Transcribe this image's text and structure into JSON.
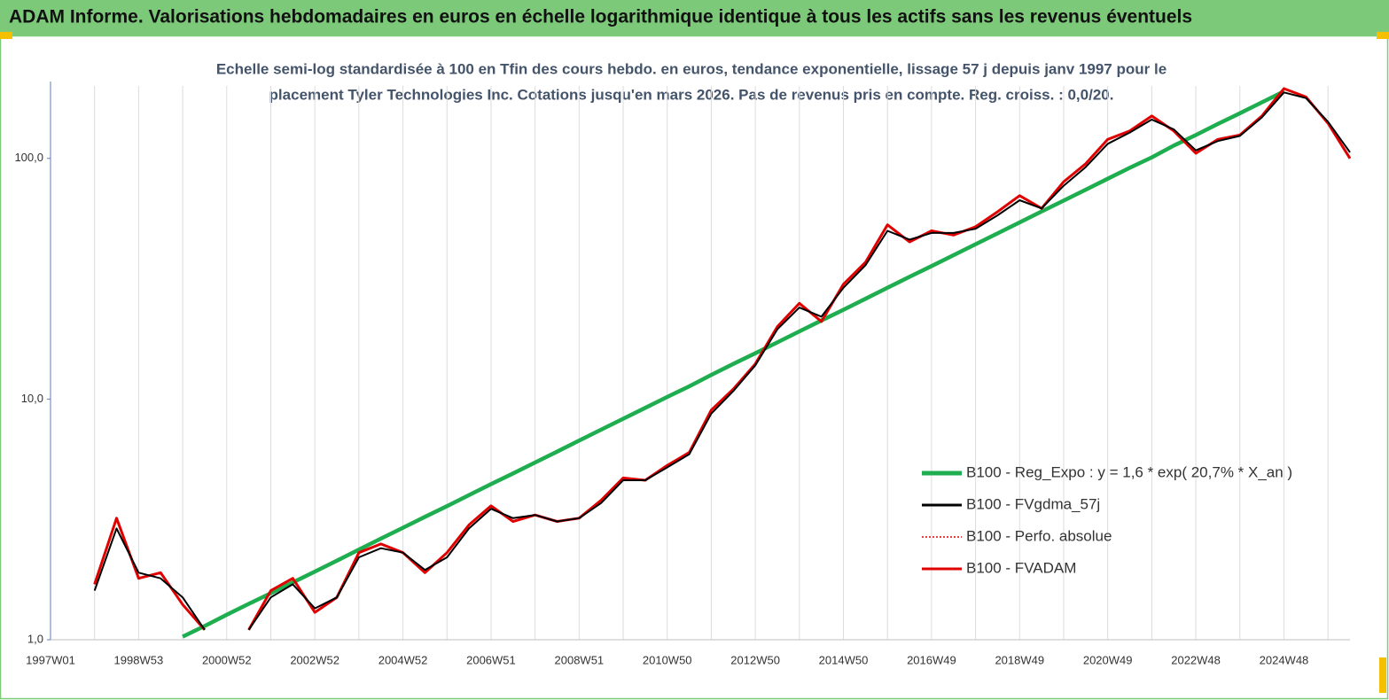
{
  "chart_data": {
    "type": "line",
    "title": "ADAM Informe. Valorisations hebdomadaires en euros en échelle logarithmique identique à tous les actifs sans les revenus éventuels",
    "subtitle": [
      "Echelle semi-log standardisée à 100 en Tfin des cours hebdo. en euros, tendance exponentielle, lissage 57 j depuis janv 1997 pour le",
      "placement Tyler Technologies Inc. Cotations jusqu'en mars 2026. Pas de revenus pris en compte. Reg. croiss. : 0,0/20."
    ],
    "categories": [
      "1997W01",
      null,
      null,
      null,
      "1998W53",
      null,
      null,
      null,
      "2000W52",
      null,
      null,
      null,
      "2002W52",
      null,
      null,
      null,
      "2004W52",
      null,
      null,
      null,
      "2006W51",
      null,
      null,
      null,
      "2008W51",
      null,
      null,
      null,
      "2010W50",
      null,
      null,
      null,
      "2012W50",
      null,
      null,
      null,
      "2014W50",
      null,
      null,
      null,
      "2016W49",
      null,
      null,
      null,
      "2018W49",
      null,
      null,
      null,
      "2020W49",
      null,
      null,
      null,
      "2022W48",
      null,
      null,
      null,
      "2024W48",
      null,
      null,
      null
    ],
    "log_scale": true,
    "ylim": [
      1,
      200
    ],
    "yticks": [
      {
        "value": 1,
        "label": "1,0"
      },
      {
        "value": 10,
        "label": "10,0"
      },
      {
        "value": 100,
        "label": "100,0"
      }
    ],
    "x_grid": true,
    "legend": "lower right",
    "series": [
      {
        "name": "B100 - Reg_Expo : y = 1,6 * exp( 20,7% *  X_an )",
        "color": "#1fae4f",
        "style": "solid",
        "values": [
          null,
          null,
          null,
          null,
          null,
          null,
          1.03,
          1.14,
          1.27,
          1.41,
          1.56,
          1.73,
          1.92,
          2.13,
          2.37,
          2.63,
          2.92,
          3.24,
          3.59,
          3.99,
          4.43,
          4.91,
          5.45,
          6.05,
          6.72,
          7.46,
          8.28,
          9.19,
          10.2,
          11.3,
          12.6,
          14.0,
          15.5,
          17.2,
          19.1,
          21.2,
          23.5,
          26.1,
          29.0,
          32.2,
          35.7,
          39.6,
          44.0,
          48.8,
          54.2,
          60.2,
          66.8,
          74.1,
          82.3,
          91.4,
          101,
          113,
          125,
          139,
          154,
          171,
          190,
          null,
          null,
          null
        ]
      },
      {
        "name": "B100 - FVgdma_57j",
        "color": "#000000",
        "style": "solid",
        "values": [
          null,
          null,
          1.6,
          2.9,
          1.9,
          1.8,
          1.5,
          1.1,
          null,
          1.1,
          1.5,
          1.7,
          1.35,
          1.5,
          2.2,
          2.4,
          2.3,
          1.95,
          2.2,
          2.9,
          3.5,
          3.2,
          3.3,
          3.1,
          3.2,
          3.7,
          4.6,
          4.6,
          5.2,
          5.9,
          8.7,
          10.8,
          13.8,
          19.5,
          24,
          22,
          29,
          36,
          50,
          46,
          49,
          49,
          51,
          58,
          67,
          62,
          77,
          92,
          115,
          128,
          145,
          132,
          108,
          118,
          124,
          148,
          188,
          178,
          142,
          106
        ]
      },
      {
        "name": "B100 - Perfo. absolue",
        "color": "#e00000",
        "style": "dotted",
        "values": [
          null,
          null,
          1.7,
          3.2,
          1.8,
          1.9,
          1.4,
          1.1,
          null,
          1.1,
          1.6,
          1.8,
          1.3,
          1.5,
          2.3,
          2.5,
          2.3,
          1.9,
          2.3,
          3.0,
          3.6,
          3.1,
          3.3,
          3.1,
          3.2,
          3.8,
          4.7,
          4.6,
          5.3,
          6.0,
          9.0,
          11.0,
          14,
          20,
          25,
          21,
          30,
          37,
          53,
          45,
          50,
          48,
          52,
          60,
          70,
          62,
          80,
          95,
          120,
          130,
          150,
          130,
          105,
          120,
          125,
          150,
          195,
          180,
          140,
          100
        ]
      },
      {
        "name": "B100 - FVADAM",
        "color": "#e00000",
        "style": "solid",
        "values": [
          null,
          null,
          1.7,
          3.2,
          1.8,
          1.9,
          1.4,
          1.1,
          null,
          1.1,
          1.6,
          1.8,
          1.3,
          1.5,
          2.3,
          2.5,
          2.3,
          1.9,
          2.3,
          3.0,
          3.6,
          3.1,
          3.3,
          3.1,
          3.2,
          3.8,
          4.7,
          4.6,
          5.3,
          6.0,
          9.0,
          11.0,
          14,
          20,
          25,
          21,
          30,
          37,
          53,
          45,
          50,
          48,
          52,
          60,
          70,
          62,
          80,
          95,
          120,
          130,
          150,
          130,
          105,
          120,
          125,
          150,
          195,
          180,
          140,
          100
        ]
      }
    ]
  }
}
